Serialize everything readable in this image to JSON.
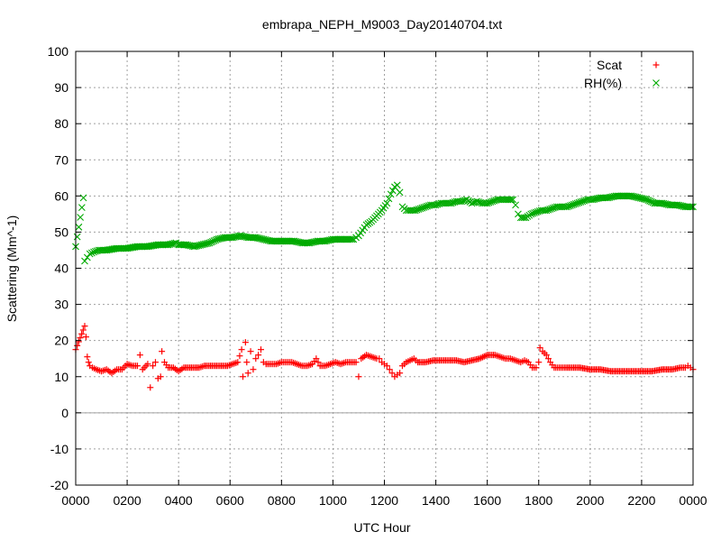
{
  "chart_data": {
    "type": "scatter",
    "title": "embrapa_NEPH_M9003_Day20140704.txt",
    "xlabel": "UTC Hour",
    "ylabel": "Scattering (Mm^-1)",
    "xlim": [
      0,
      2400
    ],
    "ylim": [
      -20,
      100
    ],
    "x_ticks": [
      "0000",
      "0200",
      "0400",
      "0600",
      "0800",
      "1000",
      "1200",
      "1400",
      "1600",
      "1800",
      "2000",
      "2200",
      "0000"
    ],
    "y_ticks": [
      "-20",
      "-10",
      "0",
      "10",
      "20",
      "30",
      "40",
      "50",
      "60",
      "70",
      "80",
      "90",
      "100"
    ],
    "grid": true,
    "legend_position": "top-right",
    "series": [
      {
        "name": "Scat",
        "color": "#ff0000",
        "marker": "plus",
        "points": [
          [
            0,
            17.5
          ],
          [
            35,
            24
          ],
          [
            40,
            21
          ],
          [
            45,
            15.5
          ],
          [
            50,
            14
          ],
          [
            55,
            13
          ],
          [
            65,
            12.5
          ],
          [
            80,
            12
          ],
          [
            100,
            11.5
          ],
          [
            120,
            12
          ],
          [
            140,
            11
          ],
          [
            160,
            12
          ],
          [
            180,
            12
          ],
          [
            200,
            13.5
          ],
          [
            220,
            13
          ],
          [
            240,
            13
          ],
          [
            250,
            16
          ],
          [
            260,
            12
          ],
          [
            280,
            13.5
          ],
          [
            290,
            7
          ],
          [
            300,
            13
          ],
          [
            310,
            14
          ],
          [
            320,
            9.5
          ],
          [
            330,
            10
          ],
          [
            335,
            17
          ],
          [
            345,
            14
          ],
          [
            360,
            12.5
          ],
          [
            380,
            12.5
          ],
          [
            400,
            11.5
          ],
          [
            420,
            12.5
          ],
          [
            450,
            12.5
          ],
          [
            480,
            12.5
          ],
          [
            500,
            13
          ],
          [
            530,
            13
          ],
          [
            560,
            13
          ],
          [
            590,
            13
          ],
          [
            610,
            13.5
          ],
          [
            630,
            14
          ],
          [
            645,
            17.5
          ],
          [
            650,
            10
          ],
          [
            660,
            19.5
          ],
          [
            665,
            14
          ],
          [
            670,
            11
          ],
          [
            680,
            17
          ],
          [
            690,
            12
          ],
          [
            700,
            15
          ],
          [
            710,
            16
          ],
          [
            720,
            17.5
          ],
          [
            730,
            14
          ],
          [
            740,
            13.5
          ],
          [
            760,
            13.5
          ],
          [
            780,
            13.5
          ],
          [
            800,
            14
          ],
          [
            820,
            14
          ],
          [
            840,
            14
          ],
          [
            860,
            13.5
          ],
          [
            880,
            13
          ],
          [
            900,
            13
          ],
          [
            920,
            13.5
          ],
          [
            935,
            15
          ],
          [
            950,
            13
          ],
          [
            970,
            13
          ],
          [
            990,
            13.5
          ],
          [
            1010,
            14
          ],
          [
            1030,
            13.5
          ],
          [
            1050,
            14
          ],
          [
            1070,
            14
          ],
          [
            1090,
            14
          ],
          [
            1100,
            10
          ],
          [
            1110,
            15
          ],
          [
            1130,
            16
          ],
          [
            1150,
            15.5
          ],
          [
            1170,
            15
          ],
          [
            1180,
            15
          ],
          [
            1190,
            14
          ],
          [
            1200,
            13.5
          ],
          [
            1210,
            13
          ],
          [
            1220,
            12
          ],
          [
            1230,
            11
          ],
          [
            1240,
            10
          ],
          [
            1250,
            10.5
          ],
          [
            1260,
            11
          ],
          [
            1270,
            13
          ],
          [
            1285,
            14
          ],
          [
            1300,
            14.5
          ],
          [
            1315,
            15
          ],
          [
            1330,
            14
          ],
          [
            1360,
            14
          ],
          [
            1390,
            14.5
          ],
          [
            1420,
            14.5
          ],
          [
            1450,
            14.5
          ],
          [
            1480,
            14.5
          ],
          [
            1510,
            14
          ],
          [
            1540,
            14.5
          ],
          [
            1570,
            15
          ],
          [
            1600,
            16
          ],
          [
            1630,
            16
          ],
          [
            1650,
            15.5
          ],
          [
            1670,
            15
          ],
          [
            1690,
            15
          ],
          [
            1710,
            14.5
          ],
          [
            1730,
            14
          ],
          [
            1745,
            14.5
          ],
          [
            1760,
            14
          ],
          [
            1775,
            12.5
          ],
          [
            1790,
            12.5
          ],
          [
            1800,
            14
          ],
          [
            1805,
            18
          ],
          [
            1815,
            17
          ],
          [
            1830,
            16
          ],
          [
            1845,
            14
          ],
          [
            1860,
            12.5
          ],
          [
            1880,
            12.5
          ],
          [
            1900,
            12.5
          ],
          [
            1930,
            12.5
          ],
          [
            1960,
            12.5
          ],
          [
            2000,
            12
          ],
          [
            2040,
            12
          ],
          [
            2080,
            11.5
          ],
          [
            2120,
            11.5
          ],
          [
            2160,
            11.5
          ],
          [
            2200,
            11.5
          ],
          [
            2240,
            11.5
          ],
          [
            2280,
            12
          ],
          [
            2320,
            12
          ],
          [
            2350,
            12.5
          ],
          [
            2370,
            12.5
          ],
          [
            2380,
            13
          ],
          [
            2390,
            12.5
          ],
          [
            2400,
            12
          ]
        ]
      },
      {
        "name": "RH(%)",
        "color": "#00aa00",
        "marker": "cross",
        "points": [
          [
            0,
            46
          ],
          [
            30,
            59.5
          ],
          [
            35,
            42
          ],
          [
            45,
            43
          ],
          [
            55,
            44
          ],
          [
            70,
            44.5
          ],
          [
            90,
            45
          ],
          [
            120,
            45
          ],
          [
            160,
            45.5
          ],
          [
            200,
            45.5
          ],
          [
            240,
            46
          ],
          [
            280,
            46
          ],
          [
            320,
            46.5
          ],
          [
            360,
            46.5
          ],
          [
            390,
            47
          ],
          [
            400,
            46.5
          ],
          [
            430,
            46.5
          ],
          [
            460,
            46
          ],
          [
            490,
            46.5
          ],
          [
            520,
            47
          ],
          [
            550,
            48
          ],
          [
            580,
            48.5
          ],
          [
            610,
            48.5
          ],
          [
            640,
            49
          ],
          [
            670,
            48.5
          ],
          [
            700,
            48.5
          ],
          [
            730,
            48
          ],
          [
            760,
            47.5
          ],
          [
            790,
            47.5
          ],
          [
            820,
            47.5
          ],
          [
            850,
            47.5
          ],
          [
            880,
            47
          ],
          [
            910,
            47
          ],
          [
            940,
            47.5
          ],
          [
            970,
            47.5
          ],
          [
            1000,
            48
          ],
          [
            1030,
            48
          ],
          [
            1060,
            48
          ],
          [
            1080,
            48
          ],
          [
            1090,
            48.5
          ],
          [
            1100,
            49
          ],
          [
            1115,
            50.5
          ],
          [
            1130,
            52
          ],
          [
            1150,
            53
          ],
          [
            1170,
            54.5
          ],
          [
            1190,
            56
          ],
          [
            1210,
            58
          ],
          [
            1225,
            60.5
          ],
          [
            1240,
            62.5
          ],
          [
            1250,
            63
          ],
          [
            1260,
            61
          ],
          [
            1270,
            57
          ],
          [
            1285,
            56
          ],
          [
            1300,
            56
          ],
          [
            1320,
            56
          ],
          [
            1340,
            56.5
          ],
          [
            1360,
            57
          ],
          [
            1380,
            57.5
          ],
          [
            1400,
            57.5
          ],
          [
            1420,
            58
          ],
          [
            1440,
            58
          ],
          [
            1460,
            58
          ],
          [
            1480,
            58.5
          ],
          [
            1500,
            58.5
          ],
          [
            1520,
            59
          ],
          [
            1540,
            58
          ],
          [
            1560,
            58.5
          ],
          [
            1580,
            58
          ],
          [
            1600,
            58
          ],
          [
            1620,
            58.5
          ],
          [
            1640,
            59
          ],
          [
            1660,
            59
          ],
          [
            1680,
            59
          ],
          [
            1700,
            59
          ],
          [
            1710,
            57.5
          ],
          [
            1720,
            55
          ],
          [
            1730,
            54
          ],
          [
            1750,
            54
          ],
          [
            1770,
            55
          ],
          [
            1790,
            55.5
          ],
          [
            1810,
            56
          ],
          [
            1830,
            56
          ],
          [
            1850,
            56.5
          ],
          [
            1870,
            57
          ],
          [
            1890,
            57
          ],
          [
            1910,
            57
          ],
          [
            1930,
            57.5
          ],
          [
            1950,
            58
          ],
          [
            1970,
            58.5
          ],
          [
            1990,
            59
          ],
          [
            2010,
            59
          ],
          [
            2040,
            59.5
          ],
          [
            2070,
            59.5
          ],
          [
            2100,
            60
          ],
          [
            2130,
            60
          ],
          [
            2160,
            60
          ],
          [
            2190,
            59.5
          ],
          [
            2220,
            59
          ],
          [
            2250,
            58
          ],
          [
            2280,
            58
          ],
          [
            2310,
            57.5
          ],
          [
            2340,
            57.5
          ],
          [
            2370,
            57
          ],
          [
            2400,
            57
          ]
        ]
      }
    ]
  }
}
